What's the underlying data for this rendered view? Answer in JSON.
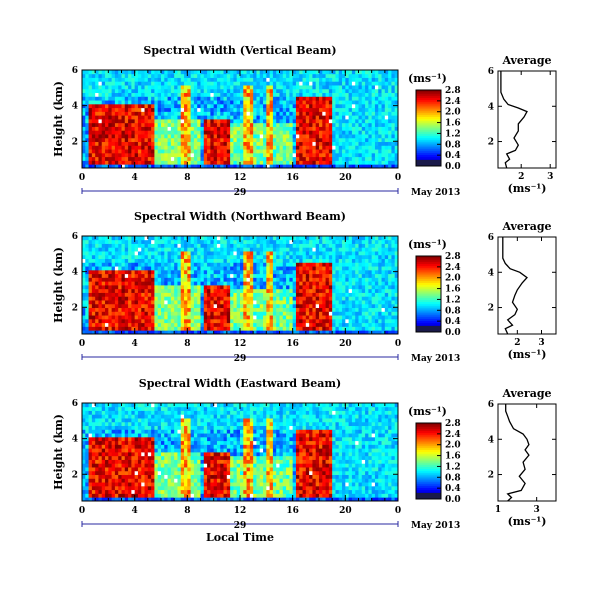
{
  "chart_data": [
    {
      "type": "heatmap",
      "title": "Spectral Width (Vertical Beam)",
      "ylabel": "Height (km)",
      "x_ticks": [
        "0",
        "4",
        "8",
        "12",
        "16",
        "20",
        "0"
      ],
      "y_ticks": [
        "2",
        "4",
        "6"
      ],
      "date_day": "29",
      "date_label": "May 2013",
      "colorbar": {
        "unit": "(ms⁻¹)",
        "ticks": [
          "0.0",
          "0.4",
          "0.8",
          "1.2",
          "1.6",
          "2.0",
          "2.4",
          "2.8"
        ]
      },
      "xlim": [
        0,
        24
      ],
      "ylim": [
        0.5,
        6
      ],
      "zlim": [
        0,
        3.0
      ]
    },
    {
      "type": "line",
      "title": "Average",
      "xlabel": "(ms⁻¹)",
      "x_ticks": [
        "2",
        "3"
      ],
      "y_ticks": [
        "2",
        "4",
        "6"
      ],
      "xlim": [
        1.2,
        3.2
      ],
      "ylim": [
        0.5,
        6
      ],
      "x": [
        1.5,
        1.45,
        1.6,
        1.5,
        1.8,
        1.9,
        1.75,
        1.9,
        1.9,
        2.1,
        2.2,
        1.9,
        1.55,
        1.4,
        1.3,
        1.3,
        1.3,
        1.3
      ],
      "y": [
        0.5,
        0.8,
        1.0,
        1.3,
        1.5,
        1.8,
        2.2,
        2.6,
        3.0,
        3.4,
        3.7,
        3.9,
        4.1,
        4.4,
        4.8,
        5.2,
        5.6,
        6.0
      ]
    },
    {
      "type": "heatmap",
      "title": "Spectral Width (Northward Beam)",
      "ylabel": "Height (km)",
      "x_ticks": [
        "0",
        "4",
        "8",
        "12",
        "16",
        "20",
        "0"
      ],
      "y_ticks": [
        "2",
        "4",
        "6"
      ],
      "date_day": "29",
      "date_label": "May 2013",
      "colorbar": {
        "unit": "(ms⁻¹)",
        "ticks": [
          "0.0",
          "0.4",
          "0.8",
          "1.2",
          "1.6",
          "2.0",
          "2.4",
          "2.8"
        ]
      },
      "xlim": [
        0,
        24
      ],
      "ylim": [
        0.5,
        6
      ],
      "zlim": [
        0,
        3.0
      ]
    },
    {
      "type": "line",
      "title": "Average",
      "xlabel": "(ms⁻¹)",
      "x_ticks": [
        "2",
        "3"
      ],
      "y_ticks": [
        "2",
        "4",
        "6"
      ],
      "xlim": [
        1.2,
        3.6
      ],
      "ylim": [
        0.5,
        6
      ],
      "x": [
        1.6,
        1.5,
        1.8,
        1.6,
        1.9,
        2.0,
        1.8,
        1.9,
        2.0,
        2.2,
        2.4,
        2.1,
        1.7,
        1.5,
        1.4,
        1.4,
        1.4,
        1.4
      ],
      "y": [
        0.5,
        0.8,
        1.0,
        1.3,
        1.6,
        1.9,
        2.3,
        2.7,
        3.0,
        3.4,
        3.7,
        4.0,
        4.2,
        4.5,
        4.8,
        5.2,
        5.6,
        6.0
      ]
    },
    {
      "type": "heatmap",
      "title": "Spectral Width (Eastward Beam)",
      "ylabel": "Height (km)",
      "xlabel": "Local Time",
      "x_ticks": [
        "0",
        "4",
        "8",
        "12",
        "16",
        "20",
        "0"
      ],
      "y_ticks": [
        "2",
        "4",
        "6"
      ],
      "date_day": "29",
      "date_label": "May 2013",
      "colorbar": {
        "unit": "(ms⁻¹)",
        "ticks": [
          "0.0",
          "0.4",
          "0.8",
          "1.2",
          "1.6",
          "2.0",
          "2.4",
          "2.8"
        ]
      },
      "xlim": [
        0,
        24
      ],
      "ylim": [
        0.5,
        6
      ],
      "zlim": [
        0,
        3.0
      ]
    },
    {
      "type": "line",
      "title": "Average",
      "xlabel": "(ms⁻¹)",
      "x_ticks": [
        "1",
        "3"
      ],
      "y_ticks": [
        "2",
        "4",
        "6"
      ],
      "xlim": [
        1.0,
        4.0
      ],
      "ylim": [
        0.5,
        6
      ],
      "x": [
        1.5,
        1.7,
        1.5,
        2.2,
        2.4,
        2.1,
        2.4,
        2.3,
        2.6,
        2.4,
        2.6,
        2.5,
        2.3,
        1.8,
        1.6,
        1.5,
        1.4,
        1.4
      ],
      "y": [
        0.5,
        0.7,
        0.9,
        1.1,
        1.5,
        1.9,
        2.3,
        2.7,
        3.1,
        3.4,
        3.7,
        4.0,
        4.3,
        4.6,
        5.0,
        5.3,
        5.6,
        6.0
      ]
    }
  ]
}
